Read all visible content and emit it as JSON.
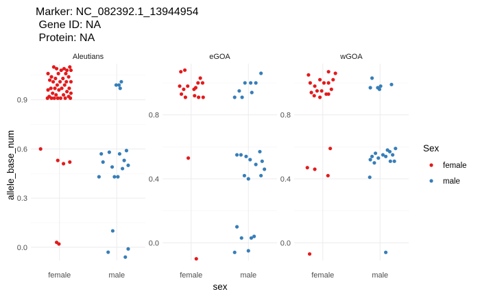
{
  "title_lines": [
    "Marker: NC_082392.1_13944954",
    " Gene ID: NA",
    " Protein: NA"
  ],
  "chart_data": {
    "type": "scatter",
    "subtype": "jitter-strip",
    "xlabel": "sex",
    "ylabel": "allele_base_num",
    "categories": [
      "female",
      "male"
    ],
    "legend": {
      "title": "Sex",
      "entries": [
        {
          "label": "female",
          "color": "#e41a1c"
        },
        {
          "label": "male",
          "color": "#377eb8"
        }
      ]
    },
    "panels": [
      {
        "name": "Aleutians",
        "ylim": [
          -0.08,
          1.12
        ],
        "yticks": [
          0.0,
          0.3,
          0.6,
          0.9
        ],
        "ytick_labels": [
          "0.0",
          "0.3",
          "0.6",
          "0.9"
        ],
        "points": [
          {
            "sex": "female",
            "jx": -0.1,
            "y": 1.1
          },
          {
            "sex": "female",
            "jx": -0.05,
            "y": 1.09
          },
          {
            "sex": "female",
            "jx": 0.08,
            "y": 1.09
          },
          {
            "sex": "female",
            "jx": 0.18,
            "y": 1.1
          },
          {
            "sex": "female",
            "jx": 0.2,
            "y": 1.08
          },
          {
            "sex": "female",
            "jx": 0.13,
            "y": 1.08
          },
          {
            "sex": "female",
            "jx": 0.03,
            "y": 1.08
          },
          {
            "sex": "female",
            "jx": -0.2,
            "y": 1.06
          },
          {
            "sex": "female",
            "jx": -0.02,
            "y": 1.06
          },
          {
            "sex": "female",
            "jx": 0.11,
            "y": 1.06
          },
          {
            "sex": "female",
            "jx": -0.14,
            "y": 1.04
          },
          {
            "sex": "female",
            "jx": 0.16,
            "y": 1.04
          },
          {
            "sex": "female",
            "jx": -0.07,
            "y": 1.03
          },
          {
            "sex": "female",
            "jx": -0.17,
            "y": 1.02
          },
          {
            "sex": "female",
            "jx": 0.06,
            "y": 1.03
          },
          {
            "sex": "female",
            "jx": -0.11,
            "y": 1.01
          },
          {
            "sex": "female",
            "jx": 0.01,
            "y": 1.01
          },
          {
            "sex": "female",
            "jx": 0.12,
            "y": 1.01
          },
          {
            "sex": "female",
            "jx": 0.2,
            "y": 1.01
          },
          {
            "sex": "female",
            "jx": -0.04,
            "y": 0.99
          },
          {
            "sex": "female",
            "jx": 0.09,
            "y": 0.99
          },
          {
            "sex": "female",
            "jx": -0.15,
            "y": 0.97
          },
          {
            "sex": "female",
            "jx": -0.08,
            "y": 0.97
          },
          {
            "sex": "female",
            "jx": 0.04,
            "y": 0.97
          },
          {
            "sex": "female",
            "jx": 0.17,
            "y": 0.97
          },
          {
            "sex": "female",
            "jx": -0.2,
            "y": 0.96
          },
          {
            "sex": "female",
            "jx": -0.01,
            "y": 0.96
          },
          {
            "sex": "female",
            "jx": 0.13,
            "y": 0.95
          },
          {
            "sex": "female",
            "jx": 0.2,
            "y": 0.94
          },
          {
            "sex": "female",
            "jx": -0.12,
            "y": 0.94
          },
          {
            "sex": "female",
            "jx": 0.07,
            "y": 0.93
          },
          {
            "sex": "female",
            "jx": -0.06,
            "y": 0.93
          },
          {
            "sex": "female",
            "jx": -0.18,
            "y": 0.92
          },
          {
            "sex": "female",
            "jx": 0.16,
            "y": 0.92
          },
          {
            "sex": "female",
            "jx": -0.21,
            "y": 0.91
          },
          {
            "sex": "female",
            "jx": -0.14,
            "y": 0.91
          },
          {
            "sex": "female",
            "jx": -0.09,
            "y": 0.91
          },
          {
            "sex": "female",
            "jx": -0.03,
            "y": 0.91
          },
          {
            "sex": "female",
            "jx": 0.02,
            "y": 0.91
          },
          {
            "sex": "female",
            "jx": 0.1,
            "y": 0.91
          },
          {
            "sex": "female",
            "jx": 0.19,
            "y": 0.91
          },
          {
            "sex": "female",
            "jx": -0.33,
            "y": 0.6
          },
          {
            "sex": "female",
            "jx": -0.03,
            "y": 0.53
          },
          {
            "sex": "female",
            "jx": 0.07,
            "y": 0.51
          },
          {
            "sex": "female",
            "jx": 0.18,
            "y": 0.52
          },
          {
            "sex": "female",
            "jx": -0.05,
            "y": 0.03
          },
          {
            "sex": "female",
            "jx": -0.01,
            "y": 0.02
          },
          {
            "sex": "male",
            "jx": 0.08,
            "y": 1.01
          },
          {
            "sex": "male",
            "jx": 0.04,
            "y": 0.99
          },
          {
            "sex": "male",
            "jx": -0.01,
            "y": 0.99
          },
          {
            "sex": "male",
            "jx": 0.06,
            "y": 0.97
          },
          {
            "sex": "male",
            "jx": -0.27,
            "y": 0.57
          },
          {
            "sex": "male",
            "jx": -0.13,
            "y": 0.58
          },
          {
            "sex": "male",
            "jx": 0.05,
            "y": 0.57
          },
          {
            "sex": "male",
            "jx": 0.17,
            "y": 0.59
          },
          {
            "sex": "male",
            "jx": -0.24,
            "y": 0.52
          },
          {
            "sex": "male",
            "jx": 0.13,
            "y": 0.53
          },
          {
            "sex": "male",
            "jx": 0.2,
            "y": 0.5
          },
          {
            "sex": "male",
            "jx": -0.08,
            "y": 0.49
          },
          {
            "sex": "male",
            "jx": 0.1,
            "y": 0.48
          },
          {
            "sex": "male",
            "jx": -0.31,
            "y": 0.43
          },
          {
            "sex": "male",
            "jx": -0.04,
            "y": 0.43
          },
          {
            "sex": "male",
            "jx": 0.02,
            "y": 0.43
          },
          {
            "sex": "male",
            "jx": -0.07,
            "y": 0.1
          },
          {
            "sex": "male",
            "jx": 0.2,
            "y": -0.01
          },
          {
            "sex": "male",
            "jx": -0.15,
            "y": -0.03
          },
          {
            "sex": "male",
            "jx": 0.15,
            "y": -0.06
          }
        ]
      },
      {
        "name": "eGOA",
        "ylim": [
          -0.11,
          1.12
        ],
        "yticks": [
          0.0,
          0.4,
          0.8
        ],
        "ytick_labels": [
          "0.0",
          "0.4",
          "0.8"
        ],
        "points": [
          {
            "sex": "female",
            "jx": -0.18,
            "y": 1.07
          },
          {
            "sex": "female",
            "jx": -0.11,
            "y": 1.08
          },
          {
            "sex": "female",
            "jx": 0.16,
            "y": 1.03
          },
          {
            "sex": "female",
            "jx": 0.12,
            "y": 1.0
          },
          {
            "sex": "female",
            "jx": 0.2,
            "y": 1.0
          },
          {
            "sex": "female",
            "jx": -0.2,
            "y": 0.98
          },
          {
            "sex": "female",
            "jx": -0.06,
            "y": 0.98
          },
          {
            "sex": "female",
            "jx": 0.08,
            "y": 0.97
          },
          {
            "sex": "female",
            "jx": -0.13,
            "y": 0.96
          },
          {
            "sex": "female",
            "jx": 0.05,
            "y": 0.96
          },
          {
            "sex": "female",
            "jx": -0.17,
            "y": 0.93
          },
          {
            "sex": "female",
            "jx": -0.1,
            "y": 0.91
          },
          {
            "sex": "female",
            "jx": 0.06,
            "y": 0.92
          },
          {
            "sex": "female",
            "jx": 0.13,
            "y": 0.91
          },
          {
            "sex": "female",
            "jx": 0.21,
            "y": 0.91
          },
          {
            "sex": "female",
            "jx": -0.05,
            "y": 0.53
          },
          {
            "sex": "female",
            "jx": 0.09,
            "y": -0.1
          },
          {
            "sex": "male",
            "jx": 0.22,
            "y": 1.06
          },
          {
            "sex": "male",
            "jx": -0.06,
            "y": 1.0
          },
          {
            "sex": "male",
            "jx": 0.04,
            "y": 1.0
          },
          {
            "sex": "male",
            "jx": 0.13,
            "y": 1.0
          },
          {
            "sex": "male",
            "jx": -0.16,
            "y": 0.95
          },
          {
            "sex": "male",
            "jx": 0.06,
            "y": 0.94
          },
          {
            "sex": "male",
            "jx": -0.24,
            "y": 0.91
          },
          {
            "sex": "male",
            "jx": -0.11,
            "y": 0.91
          },
          {
            "sex": "male",
            "jx": -0.2,
            "y": 0.55
          },
          {
            "sex": "male",
            "jx": -0.13,
            "y": 0.55
          },
          {
            "sex": "male",
            "jx": -0.04,
            "y": 0.54
          },
          {
            "sex": "male",
            "jx": 0.03,
            "y": 0.52
          },
          {
            "sex": "male",
            "jx": 0.2,
            "y": 0.57
          },
          {
            "sex": "male",
            "jx": 0.24,
            "y": 0.51
          },
          {
            "sex": "male",
            "jx": 0.13,
            "y": 0.49
          },
          {
            "sex": "male",
            "jx": 0.28,
            "y": 0.46
          },
          {
            "sex": "male",
            "jx": -0.07,
            "y": 0.42
          },
          {
            "sex": "male",
            "jx": 0.0,
            "y": 0.4
          },
          {
            "sex": "male",
            "jx": 0.22,
            "y": 0.42
          },
          {
            "sex": "male",
            "jx": -0.2,
            "y": 0.1
          },
          {
            "sex": "male",
            "jx": -0.12,
            "y": 0.03
          },
          {
            "sex": "male",
            "jx": 0.1,
            "y": 0.04
          },
          {
            "sex": "male",
            "jx": 0.05,
            "y": 0.03
          },
          {
            "sex": "male",
            "jx": -0.24,
            "y": -0.06
          },
          {
            "sex": "male",
            "jx": 0.0,
            "y": -0.05
          }
        ]
      },
      {
        "name": "wGOA",
        "ylim": [
          -0.11,
          1.12
        ],
        "yticks": [
          0.0,
          0.4,
          0.8
        ],
        "ytick_labels": [
          "0.0",
          "0.4",
          "0.8"
        ],
        "points": [
          {
            "sex": "female",
            "jx": -0.25,
            "y": 1.05
          },
          {
            "sex": "female",
            "jx": 0.1,
            "y": 1.07
          },
          {
            "sex": "female",
            "jx": 0.22,
            "y": 1.06
          },
          {
            "sex": "female",
            "jx": -0.05,
            "y": 1.02
          },
          {
            "sex": "female",
            "jx": 0.18,
            "y": 1.02
          },
          {
            "sex": "female",
            "jx": -0.22,
            "y": 1.0
          },
          {
            "sex": "female",
            "jx": 0.02,
            "y": 1.0
          },
          {
            "sex": "female",
            "jx": 0.1,
            "y": 1.0
          },
          {
            "sex": "female",
            "jx": -0.14,
            "y": 0.98
          },
          {
            "sex": "female",
            "jx": -0.1,
            "y": 0.95
          },
          {
            "sex": "female",
            "jx": -0.02,
            "y": 0.95
          },
          {
            "sex": "female",
            "jx": 0.15,
            "y": 0.96
          },
          {
            "sex": "female",
            "jx": -0.2,
            "y": 0.94
          },
          {
            "sex": "female",
            "jx": 0.06,
            "y": 0.93
          },
          {
            "sex": "female",
            "jx": -0.15,
            "y": 0.92
          },
          {
            "sex": "female",
            "jx": -0.05,
            "y": 0.91
          },
          {
            "sex": "female",
            "jx": 0.1,
            "y": 0.93
          },
          {
            "sex": "female",
            "jx": 0.13,
            "y": 0.59
          },
          {
            "sex": "female",
            "jx": -0.27,
            "y": 0.47
          },
          {
            "sex": "female",
            "jx": -0.14,
            "y": 0.46
          },
          {
            "sex": "female",
            "jx": 0.09,
            "y": 0.42
          },
          {
            "sex": "female",
            "jx": -0.23,
            "y": -0.07
          },
          {
            "sex": "male",
            "jx": -0.14,
            "y": 1.03
          },
          {
            "sex": "male",
            "jx": 0.2,
            "y": 0.99
          },
          {
            "sex": "male",
            "jx": -0.17,
            "y": 0.97
          },
          {
            "sex": "male",
            "jx": -0.04,
            "y": 0.97
          },
          {
            "sex": "male",
            "jx": -0.01,
            "y": 0.96
          },
          {
            "sex": "male",
            "jx": 0.01,
            "y": 0.98
          },
          {
            "sex": "male",
            "jx": 0.13,
            "y": 0.58
          },
          {
            "sex": "male",
            "jx": 0.27,
            "y": 0.59
          },
          {
            "sex": "male",
            "jx": 0.17,
            "y": 0.57
          },
          {
            "sex": "male",
            "jx": -0.08,
            "y": 0.56
          },
          {
            "sex": "male",
            "jx": 0.05,
            "y": 0.55
          },
          {
            "sex": "male",
            "jx": 0.22,
            "y": 0.55
          },
          {
            "sex": "male",
            "jx": -0.14,
            "y": 0.54
          },
          {
            "sex": "male",
            "jx": 0.1,
            "y": 0.54
          },
          {
            "sex": "male",
            "jx": -0.03,
            "y": 0.53
          },
          {
            "sex": "male",
            "jx": -0.17,
            "y": 0.52
          },
          {
            "sex": "male",
            "jx": 0.18,
            "y": 0.51
          },
          {
            "sex": "male",
            "jx": 0.25,
            "y": 0.51
          },
          {
            "sex": "male",
            "jx": -0.1,
            "y": 0.5
          },
          {
            "sex": "male",
            "jx": -0.18,
            "y": 0.41
          },
          {
            "sex": "male",
            "jx": 0.1,
            "y": -0.06
          }
        ]
      }
    ]
  }
}
